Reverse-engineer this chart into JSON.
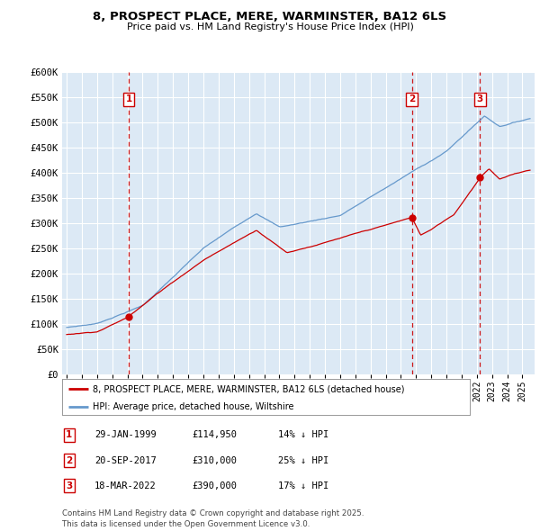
{
  "title": "8, PROSPECT PLACE, MERE, WARMINSTER, BA12 6LS",
  "subtitle": "Price paid vs. HM Land Registry's House Price Index (HPI)",
  "red_label": "8, PROSPECT PLACE, MERE, WARMINSTER, BA12 6LS (detached house)",
  "blue_label": "HPI: Average price, detached house, Wiltshire",
  "transactions": [
    {
      "num": 1,
      "date": "29-JAN-1999",
      "price": "£114,950",
      "hpi": "14% ↓ HPI",
      "year": 1999.08,
      "price_val": 114950
    },
    {
      "num": 2,
      "date": "20-SEP-2017",
      "price": "£310,000",
      "hpi": "25% ↓ HPI",
      "year": 2017.72,
      "price_val": 310000
    },
    {
      "num": 3,
      "date": "18-MAR-2022",
      "price": "£390,000",
      "hpi": "17% ↓ HPI",
      "year": 2022.21,
      "price_val": 390000
    }
  ],
  "footnote": "Contains HM Land Registry data © Crown copyright and database right 2025.\nThis data is licensed under the Open Government Licence v3.0.",
  "ylim": [
    0,
    600000
  ],
  "yticks": [
    0,
    50000,
    100000,
    150000,
    200000,
    250000,
    300000,
    350000,
    400000,
    450000,
    500000,
    550000,
    600000
  ],
  "ytick_labels": [
    "£0",
    "£50K",
    "£100K",
    "£150K",
    "£200K",
    "£250K",
    "£300K",
    "£350K",
    "£400K",
    "£450K",
    "£500K",
    "£550K",
    "£600K"
  ],
  "background_color": "#dce9f5",
  "grid_color": "#ffffff",
  "red_color": "#cc0000",
  "blue_color": "#6699cc",
  "xlim_left": 1994.7,
  "xlim_right": 2025.8
}
